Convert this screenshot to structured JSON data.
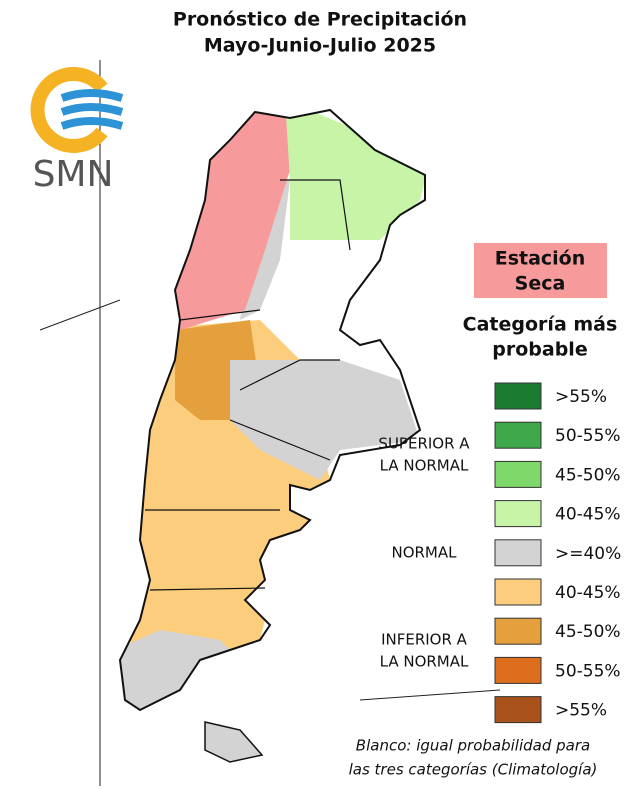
{
  "header": {
    "title": [
      "Pronóstico de Precipitación",
      "Mayo-Junio-Julio 2025"
    ]
  },
  "logo": {
    "text": "SMN"
  },
  "badge": {
    "lines": [
      "Estación",
      "Seca"
    ],
    "color": "#f79a9b"
  },
  "legend": {
    "title": [
      "Categoría más",
      "probable"
    ],
    "groups": [
      {
        "lines": [
          "SUPERIOR A",
          "LA NORMAL"
        ],
        "items": [
          {
            "label": ">55%",
            "color": "#1a7a30"
          },
          {
            "label": "50-55%",
            "color": "#3ea84a"
          },
          {
            "label": "45-50%",
            "color": "#7fd86a"
          },
          {
            "label": "40-45%",
            "color": "#c8f4a8"
          }
        ]
      },
      {
        "lines": [
          "NORMAL"
        ],
        "items": [
          {
            "label": ">=40%",
            "color": "#d3d3d3"
          }
        ]
      },
      {
        "lines": [
          "INFERIOR A",
          "LA NORMAL"
        ],
        "items": [
          {
            "label": "40-45%",
            "color": "#fbcd7c"
          },
          {
            "label": "45-50%",
            "color": "#e4a03c"
          },
          {
            "label": "50-55%",
            "color": "#dd6e1e"
          },
          {
            "label": ">55%",
            "color": "#a9521c"
          }
        ]
      }
    ]
  },
  "footnote": [
    "Blanco: igual probabilidad para",
    "las tres categorías (Climatología)"
  ]
}
